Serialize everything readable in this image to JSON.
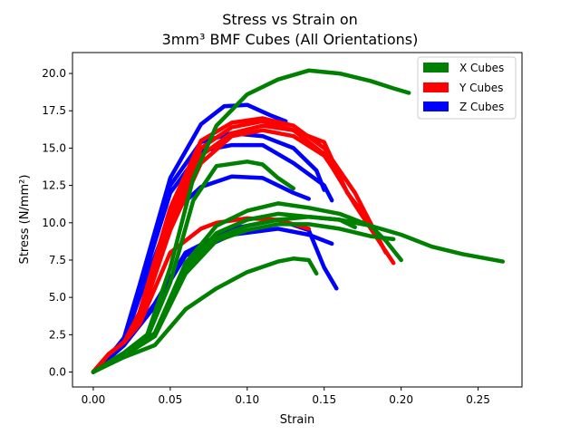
{
  "chart_data": {
    "type": "line",
    "title_line1": "Stress vs Strain on",
    "title_line2": "3mm³ BMF Cubes (All Orientations)",
    "xlabel": "Strain",
    "ylabel": "Stress (N/mm²)",
    "xlim": [
      -0.0135,
      0.2785
    ],
    "ylim": [
      -1.0,
      21.4
    ],
    "xticks": [
      0.0,
      0.05,
      0.1,
      0.15,
      0.2,
      0.25
    ],
    "xtick_labels": [
      "0.00",
      "0.05",
      "0.10",
      "0.15",
      "0.20",
      "0.25"
    ],
    "yticks": [
      0.0,
      2.5,
      5.0,
      7.5,
      10.0,
      12.5,
      15.0,
      17.5,
      20.0
    ],
    "ytick_labels": [
      "0.0",
      "2.5",
      "5.0",
      "7.5",
      "10.0",
      "12.5",
      "15.0",
      "17.5",
      "20.0"
    ],
    "grid": false,
    "legend_position": "top-right",
    "legend": [
      {
        "name": "X Cubes",
        "color": "#008000"
      },
      {
        "name": "Y Cubes",
        "color": "#ff0000"
      },
      {
        "name": "Z Cubes",
        "color": "#0000ff"
      }
    ],
    "series": [
      {
        "group": "Z Cubes",
        "color": "#0000ff",
        "x": [
          0.0,
          0.01,
          0.02,
          0.03,
          0.05,
          0.07,
          0.085,
          0.1,
          0.115,
          0.125
        ],
        "y": [
          0.0,
          1.0,
          2.3,
          5.8,
          13.0,
          16.6,
          17.8,
          17.9,
          17.2,
          16.8
        ]
      },
      {
        "group": "Z Cubes",
        "color": "#0000ff",
        "x": [
          0.0,
          0.01,
          0.02,
          0.03,
          0.05,
          0.07,
          0.09,
          0.11,
          0.13,
          0.145,
          0.15
        ],
        "y": [
          0.0,
          1.0,
          2.2,
          5.6,
          12.5,
          15.4,
          16.0,
          15.8,
          15.0,
          13.5,
          12.2
        ]
      },
      {
        "group": "Z Cubes",
        "color": "#0000ff",
        "x": [
          0.0,
          0.01,
          0.02,
          0.03,
          0.05,
          0.07,
          0.09,
          0.11,
          0.13,
          0.15,
          0.155
        ],
        "y": [
          0.0,
          1.0,
          2.1,
          5.4,
          12.0,
          14.8,
          15.2,
          15.2,
          14.0,
          12.5,
          11.5
        ]
      },
      {
        "group": "Z Cubes",
        "color": "#0000ff",
        "x": [
          0.0,
          0.01,
          0.02,
          0.03,
          0.05,
          0.07,
          0.09,
          0.11,
          0.13,
          0.14
        ],
        "y": [
          0.0,
          1.0,
          2.0,
          5.0,
          10.5,
          12.4,
          13.1,
          13.0,
          12.0,
          11.6
        ]
      },
      {
        "group": "Z Cubes",
        "color": "#0000ff",
        "x": [
          0.0,
          0.01,
          0.02,
          0.04,
          0.06,
          0.09,
          0.12,
          0.14,
          0.15,
          0.158
        ],
        "y": [
          0.0,
          0.9,
          1.8,
          4.6,
          8.0,
          9.6,
          10.2,
          9.5,
          7.0,
          5.6
        ]
      },
      {
        "group": "Z Cubes",
        "color": "#0000ff",
        "x": [
          0.0,
          0.01,
          0.02,
          0.04,
          0.06,
          0.09,
          0.12,
          0.14,
          0.155
        ],
        "y": [
          0.0,
          0.9,
          1.8,
          4.4,
          7.8,
          9.2,
          9.6,
          9.2,
          8.6
        ]
      },
      {
        "group": "Y Cubes",
        "color": "#ff0000",
        "x": [
          0.0,
          0.01,
          0.02,
          0.03,
          0.05,
          0.07,
          0.09,
          0.11,
          0.13,
          0.15,
          0.17,
          0.19
        ],
        "y": [
          0.0,
          1.2,
          2.0,
          4.0,
          11.0,
          15.5,
          16.7,
          17.0,
          16.5,
          15.0,
          12.0,
          8.0
        ]
      },
      {
        "group": "Y Cubes",
        "color": "#ff0000",
        "x": [
          0.0,
          0.01,
          0.02,
          0.03,
          0.05,
          0.07,
          0.09,
          0.11,
          0.13,
          0.15,
          0.17,
          0.195
        ],
        "y": [
          0.0,
          1.2,
          2.0,
          3.8,
          10.5,
          15.0,
          16.4,
          16.8,
          16.2,
          14.6,
          11.2,
          7.3
        ]
      },
      {
        "group": "Y Cubes",
        "color": "#ff0000",
        "x": [
          0.0,
          0.01,
          0.02,
          0.03,
          0.05,
          0.07,
          0.09,
          0.11,
          0.13,
          0.15,
          0.165,
          0.18
        ],
        "y": [
          0.0,
          1.2,
          2.0,
          3.6,
          10.0,
          14.5,
          16.0,
          16.5,
          16.2,
          15.4,
          12.0,
          10.0
        ]
      },
      {
        "group": "Y Cubes",
        "color": "#ff0000",
        "x": [
          0.0,
          0.01,
          0.02,
          0.03,
          0.05,
          0.07,
          0.09,
          0.11,
          0.13,
          0.15,
          0.16
        ],
        "y": [
          0.0,
          1.2,
          2.0,
          3.4,
          9.5,
          14.0,
          15.8,
          16.2,
          15.8,
          14.5,
          13.0
        ]
      },
      {
        "group": "Y Cubes",
        "color": "#ff0000",
        "x": [
          0.0,
          0.01,
          0.02,
          0.03,
          0.05,
          0.07,
          0.08,
          0.1,
          0.12,
          0.14
        ],
        "y": [
          0.0,
          1.2,
          2.0,
          3.2,
          8.0,
          9.6,
          10.0,
          10.3,
          10.2,
          9.6
        ]
      },
      {
        "group": "X Cubes",
        "color": "#008000",
        "x": [
          0.0,
          0.02,
          0.035,
          0.05,
          0.065,
          0.08,
          0.1,
          0.12,
          0.14,
          0.16,
          0.18,
          0.195,
          0.205
        ],
        "y": [
          0.0,
          1.3,
          2.5,
          7.0,
          13.0,
          16.5,
          18.6,
          19.6,
          20.2,
          20.0,
          19.5,
          19.0,
          18.7
        ]
      },
      {
        "group": "X Cubes",
        "color": "#008000",
        "x": [
          0.0,
          0.02,
          0.035,
          0.05,
          0.065,
          0.08,
          0.1,
          0.11,
          0.12,
          0.13
        ],
        "y": [
          0.0,
          1.2,
          2.3,
          6.0,
          11.5,
          13.8,
          14.1,
          13.9,
          13.0,
          12.3
        ]
      },
      {
        "group": "X Cubes",
        "color": "#008000",
        "x": [
          0.0,
          0.02,
          0.04,
          0.06,
          0.08,
          0.1,
          0.12,
          0.14,
          0.16,
          0.18,
          0.2,
          0.22,
          0.24,
          0.266
        ],
        "y": [
          0.0,
          1.2,
          2.5,
          7.0,
          9.0,
          9.8,
          10.2,
          10.4,
          10.2,
          9.8,
          9.2,
          8.4,
          7.9,
          7.4
        ]
      },
      {
        "group": "X Cubes",
        "color": "#008000",
        "x": [
          0.0,
          0.02,
          0.04,
          0.06,
          0.08,
          0.1,
          0.12,
          0.14,
          0.16,
          0.18,
          0.19,
          0.2
        ],
        "y": [
          0.0,
          1.2,
          2.6,
          7.3,
          9.8,
          10.8,
          11.3,
          11.0,
          10.6,
          9.8,
          8.8,
          7.5
        ]
      },
      {
        "group": "X Cubes",
        "color": "#008000",
        "x": [
          0.0,
          0.02,
          0.04,
          0.06,
          0.08,
          0.1,
          0.12,
          0.14,
          0.16,
          0.17
        ],
        "y": [
          0.0,
          1.2,
          2.6,
          7.0,
          9.3,
          10.2,
          10.6,
          10.4,
          10.2,
          9.7
        ]
      },
      {
        "group": "X Cubes",
        "color": "#008000",
        "x": [
          0.0,
          0.02,
          0.04,
          0.06,
          0.08,
          0.1,
          0.12,
          0.14,
          0.16,
          0.18,
          0.195
        ],
        "y": [
          0.0,
          1.1,
          2.4,
          6.6,
          8.8,
          9.5,
          9.9,
          9.9,
          9.6,
          9.1,
          8.9
        ]
      },
      {
        "group": "X Cubes",
        "color": "#008000",
        "x": [
          0.0,
          0.02,
          0.04,
          0.06,
          0.08,
          0.1,
          0.12,
          0.13,
          0.14,
          0.145
        ],
        "y": [
          0.0,
          1.0,
          1.8,
          4.2,
          5.6,
          6.7,
          7.4,
          7.6,
          7.5,
          6.6
        ]
      }
    ]
  }
}
